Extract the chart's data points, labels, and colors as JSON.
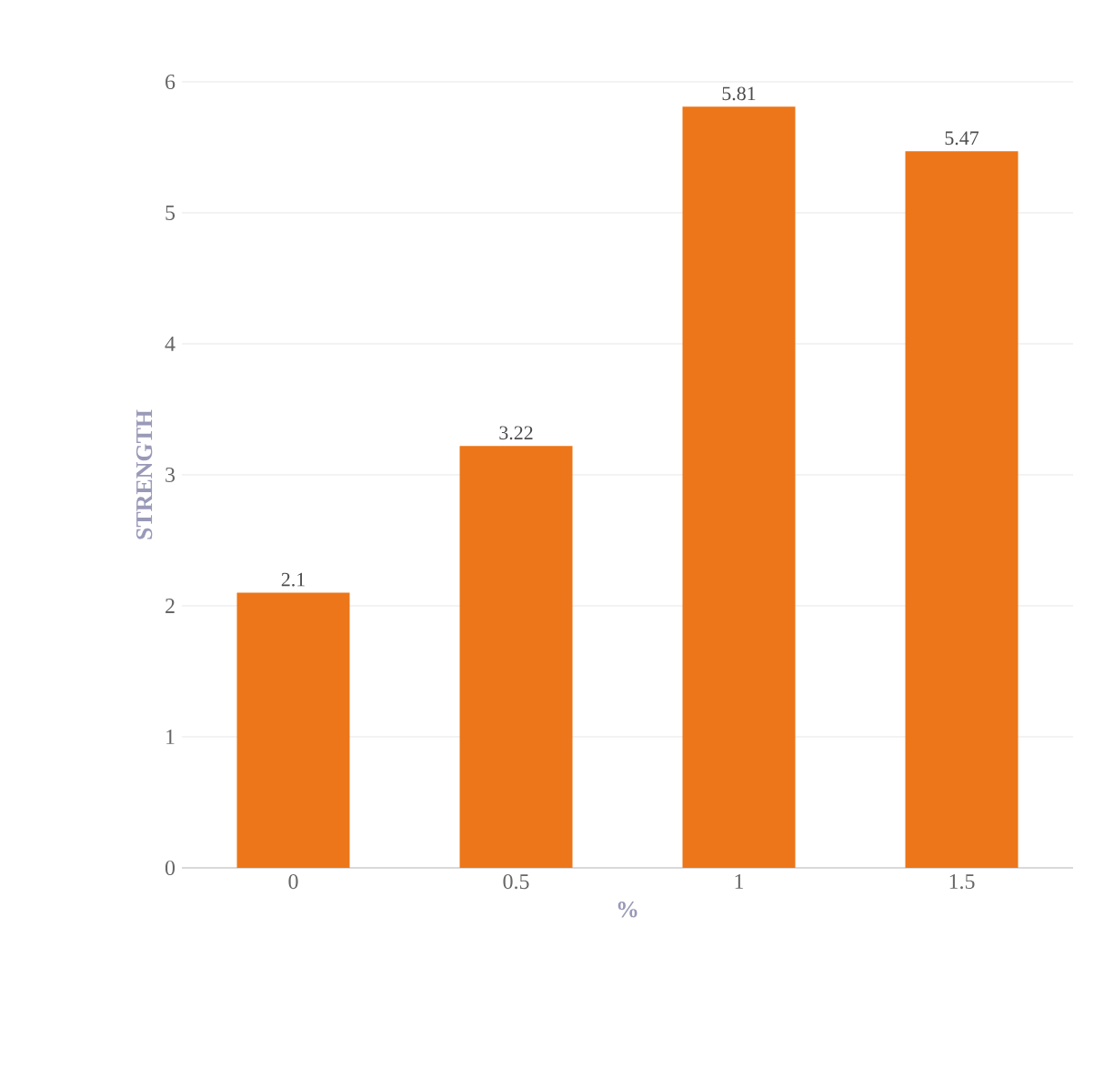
{
  "chart_data": {
    "type": "bar",
    "xlabel": "%",
    "ylabel": "STRENGTH",
    "categories": [
      "0",
      "0.5",
      "1",
      "1.5"
    ],
    "values": [
      2.1,
      3.22,
      5.81,
      5.47
    ],
    "color": "#ec7619",
    "ylim": [
      0,
      6
    ],
    "yticks": [
      0,
      1,
      2,
      3,
      4,
      5,
      6
    ],
    "grid": "y",
    "data_labels": true
  }
}
